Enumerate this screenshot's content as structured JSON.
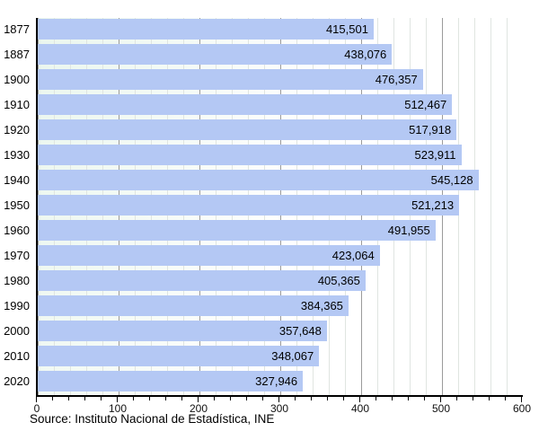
{
  "chart_data": {
    "type": "bar",
    "orientation": "horizontal",
    "categories": [
      "1877",
      "1887",
      "1900",
      "1910",
      "1920",
      "1930",
      "1940",
      "1950",
      "1960",
      "1970",
      "1980",
      "1990",
      "2000",
      "2010",
      "2020"
    ],
    "values": [
      415501,
      438076,
      476357,
      512467,
      517918,
      523911,
      545128,
      521213,
      491955,
      423064,
      405365,
      384365,
      357648,
      348067,
      327946
    ],
    "value_labels": [
      "415,501",
      "438,076",
      "476,357",
      "512,467",
      "517,918",
      "523,911",
      "545,128",
      "521,213",
      "491,955",
      "423,064",
      "405,365",
      "384,365",
      "357,648",
      "348,067",
      "327,946"
    ],
    "x_tick_labels": [
      "0",
      "100",
      "200",
      "300",
      "400",
      "500",
      "600"
    ],
    "xlim": [
      0,
      600000
    ],
    "x_tick_step": 100000,
    "x_minor_step": 20000,
    "grid": {
      "minor_color": "#e0e5e1",
      "major_color": "#9b9b9b"
    },
    "bar_color": "#b4c8f4",
    "legend": null,
    "source": "Source: Instituto Nacional de Estadística, INE"
  }
}
